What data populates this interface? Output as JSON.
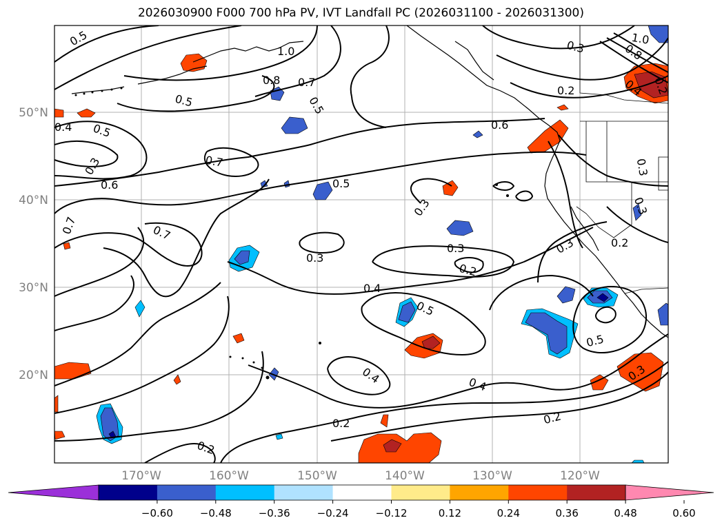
{
  "title": "2026030900 F000 700 hPa PV, IVT Landfall PC (2026031100 - 2026031300)",
  "map": {
    "lat_labels": [
      "50°N",
      "40°N",
      "30°N",
      "20°N"
    ],
    "lon_labels": [
      "170°W",
      "160°W",
      "150°W",
      "140°W",
      "130°W",
      "120°W"
    ],
    "contour_labels": [
      {
        "text": "0.5"
      },
      {
        "text": "1.0"
      },
      {
        "text": "0.8"
      },
      {
        "text": "0.7"
      },
      {
        "text": "0.5"
      },
      {
        "text": "0.5"
      },
      {
        "text": "0.5"
      },
      {
        "text": "0.4"
      },
      {
        "text": "0.3"
      },
      {
        "text": "0.7"
      },
      {
        "text": "0.6"
      },
      {
        "text": "0.7"
      },
      {
        "text": "0.7"
      },
      {
        "text": "0.5"
      },
      {
        "text": "0.3"
      },
      {
        "text": "0.6"
      },
      {
        "text": "0.3"
      },
      {
        "text": "0.3"
      },
      {
        "text": "0.2"
      },
      {
        "text": "0.4"
      },
      {
        "text": "0.5"
      },
      {
        "text": "0.4"
      },
      {
        "text": "0.4"
      },
      {
        "text": "0.2"
      },
      {
        "text": "0.2"
      },
      {
        "text": "0.2"
      },
      {
        "text": "1.0"
      },
      {
        "text": "0.8"
      },
      {
        "text": "0.3"
      },
      {
        "text": "0.2"
      },
      {
        "text": "0.4"
      },
      {
        "text": "0.3"
      },
      {
        "text": "0.3"
      },
      {
        "text": "0.3"
      },
      {
        "text": "0.2"
      },
      {
        "text": "0.5"
      },
      {
        "text": "0.3"
      },
      {
        "text": "0.2"
      }
    ]
  },
  "colorbar": {
    "colors": [
      "#9b30d9",
      "#00008b",
      "#3a5fcd",
      "#00bfff",
      "#b0e2ff",
      "#ffffff",
      "#ffeb8a",
      "#ffa500",
      "#ff4500",
      "#b22222",
      "#ff88b0"
    ],
    "tick_labels": [
      "−0.60",
      "−0.48",
      "−0.36",
      "−0.24",
      "−0.12",
      "0.12",
      "0.24",
      "0.36",
      "0.48",
      "0.60"
    ]
  },
  "colors": {
    "positive_anomaly": "#ff4500",
    "strong_positive": "#b22222",
    "negative_anomaly": "#3a5fcd",
    "strong_negative": "#00008b",
    "weak_negative": "#00bfff",
    "weak_positive": "#ffa500"
  }
}
